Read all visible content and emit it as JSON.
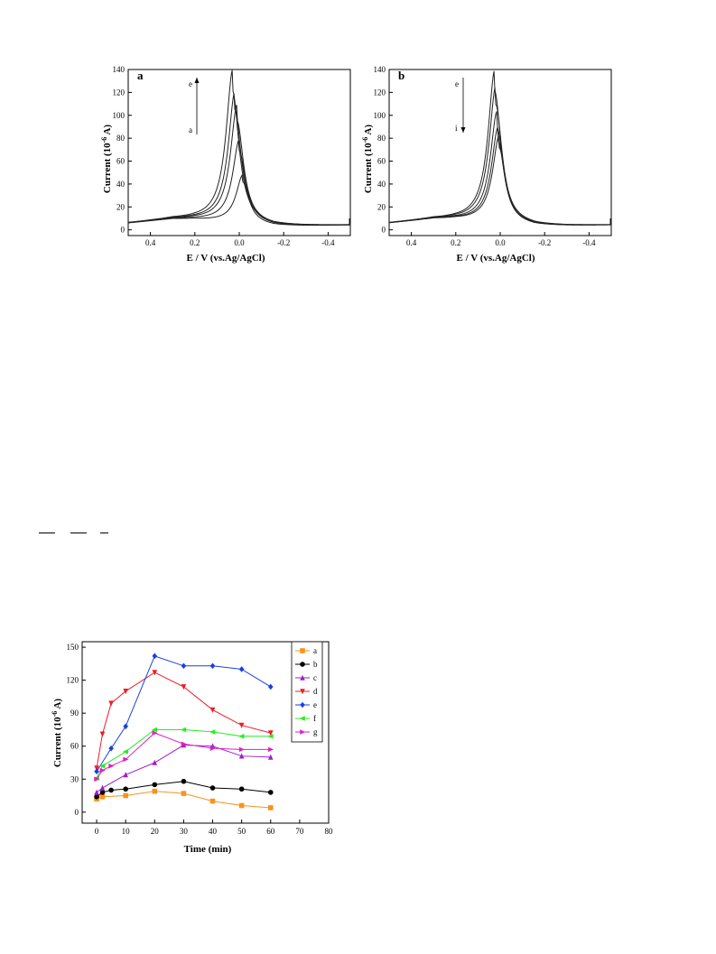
{
  "chart_data": [
    {
      "type": "line",
      "panel_label": "a",
      "xlabel": "E / V (vs.Ag/AgCl)",
      "ylabel_prefix": "Current (10",
      "ylabel_exp": "-6",
      "ylabel_suffix": " A)",
      "xlim": [
        0.5,
        -0.5
      ],
      "ylim": [
        -5,
        140
      ],
      "xticks": [
        0.4,
        0.2,
        0.0,
        -0.2,
        -0.4
      ],
      "xtick_labels": [
        "0.4",
        "0.2",
        "0.0",
        "-0.2",
        "-0.4"
      ],
      "yticks": [
        0,
        20,
        40,
        60,
        80,
        100,
        120,
        140
      ],
      "ytick_labels": [
        "0",
        "20",
        "40",
        "60",
        "80",
        "100",
        "120",
        "140"
      ],
      "arrow": {
        "direction": "up",
        "from_label": "a",
        "to_label": "e"
      },
      "series": [
        {
          "peak_E": -0.015,
          "peak_current": 46
        },
        {
          "peak_E": 0.0,
          "peak_current": 76
        },
        {
          "peak_E": 0.01,
          "peak_current": 105
        },
        {
          "peak_E": 0.02,
          "peak_current": 116
        },
        {
          "peak_E": 0.03,
          "peak_current": 134
        }
      ]
    },
    {
      "type": "line",
      "panel_label": "b",
      "xlabel": "E / V (vs.Ag/AgCl)",
      "ylabel_prefix": "Current (10",
      "ylabel_exp": "-6",
      "ylabel_suffix": " A)",
      "xlim": [
        0.5,
        -0.5
      ],
      "ylim": [
        -5,
        140
      ],
      "xticks": [
        0.4,
        0.2,
        0.0,
        -0.2,
        -0.4
      ],
      "xtick_labels": [
        "0.4",
        "0.2",
        "0.0",
        "-0.2",
        "-0.4"
      ],
      "yticks": [
        0,
        20,
        40,
        60,
        80,
        100,
        120,
        140
      ],
      "ytick_labels": [
        "0",
        "20",
        "40",
        "60",
        "80",
        "100",
        "120",
        "140"
      ],
      "arrow": {
        "direction": "down",
        "from_label": "e",
        "to_label": "i"
      },
      "series": [
        {
          "peak_E": 0.025,
          "peak_current": 134
        },
        {
          "peak_E": 0.02,
          "peak_current": 121
        },
        {
          "peak_E": 0.015,
          "peak_current": 99
        },
        {
          "peak_E": 0.01,
          "peak_current": 86
        },
        {
          "peak_E": 0.005,
          "peak_current": 79
        }
      ]
    },
    {
      "type": "line",
      "xlabel": "Time (min)",
      "ylabel_prefix": "Current (10",
      "ylabel_exp": "-6",
      "ylabel_suffix": " A)",
      "xlim": [
        -5,
        80
      ],
      "ylim": [
        -10,
        155
      ],
      "xticks": [
        0,
        10,
        20,
        30,
        40,
        50,
        60,
        70,
        80
      ],
      "xtick_labels": [
        "0",
        "10",
        "20",
        "30",
        "40",
        "50",
        "60",
        "70",
        "80"
      ],
      "yticks": [
        0,
        30,
        60,
        90,
        120,
        150
      ],
      "ytick_labels": [
        "0",
        "30",
        "60",
        "90",
        "120",
        "150"
      ],
      "legend_position": "top-right",
      "series": [
        {
          "name": "a",
          "color": "#f7941d",
          "marker": "square",
          "x": [
            0,
            2,
            10,
            20,
            30,
            40,
            50,
            60
          ],
          "y": [
            12,
            14,
            15,
            19,
            17,
            10,
            6,
            4
          ]
        },
        {
          "name": "b",
          "color": "#000000",
          "marker": "circle",
          "x": [
            0,
            2,
            5,
            10,
            20,
            30,
            40,
            50,
            60
          ],
          "y": [
            14,
            18,
            20,
            21,
            25,
            28,
            22,
            21,
            18
          ]
        },
        {
          "name": "c",
          "color": "#a020c8",
          "marker": "triangle-up",
          "x": [
            0,
            2,
            10,
            20,
            30,
            40,
            50,
            60
          ],
          "y": [
            18,
            22,
            34,
            45,
            61,
            60,
            51,
            50
          ]
        },
        {
          "name": "d",
          "color": "#ed1c24",
          "marker": "triangle-down",
          "x": [
            0,
            2,
            5,
            10,
            20,
            30,
            40,
            50,
            60
          ],
          "y": [
            40,
            71,
            99,
            110,
            127,
            114,
            93,
            79,
            72
          ]
        },
        {
          "name": "e",
          "color": "#1b3fe0",
          "marker": "diamond",
          "x": [
            0,
            5,
            10,
            20,
            30,
            40,
            50,
            60
          ],
          "y": [
            37,
            58,
            78,
            142,
            133,
            133,
            130,
            114
          ]
        },
        {
          "name": "f",
          "color": "#22ee22",
          "marker": "triangle-left",
          "x": [
            0,
            2,
            10,
            20,
            30,
            40,
            50,
            60
          ],
          "y": [
            31,
            42,
            55,
            75,
            75,
            73,
            69,
            69
          ]
        },
        {
          "name": "g",
          "color": "#e020c0",
          "marker": "triangle-right",
          "x": [
            0,
            2,
            5,
            10,
            20,
            30,
            40,
            50,
            60
          ],
          "y": [
            30,
            38,
            42,
            48,
            72,
            62,
            58,
            57,
            57
          ]
        }
      ]
    }
  ]
}
